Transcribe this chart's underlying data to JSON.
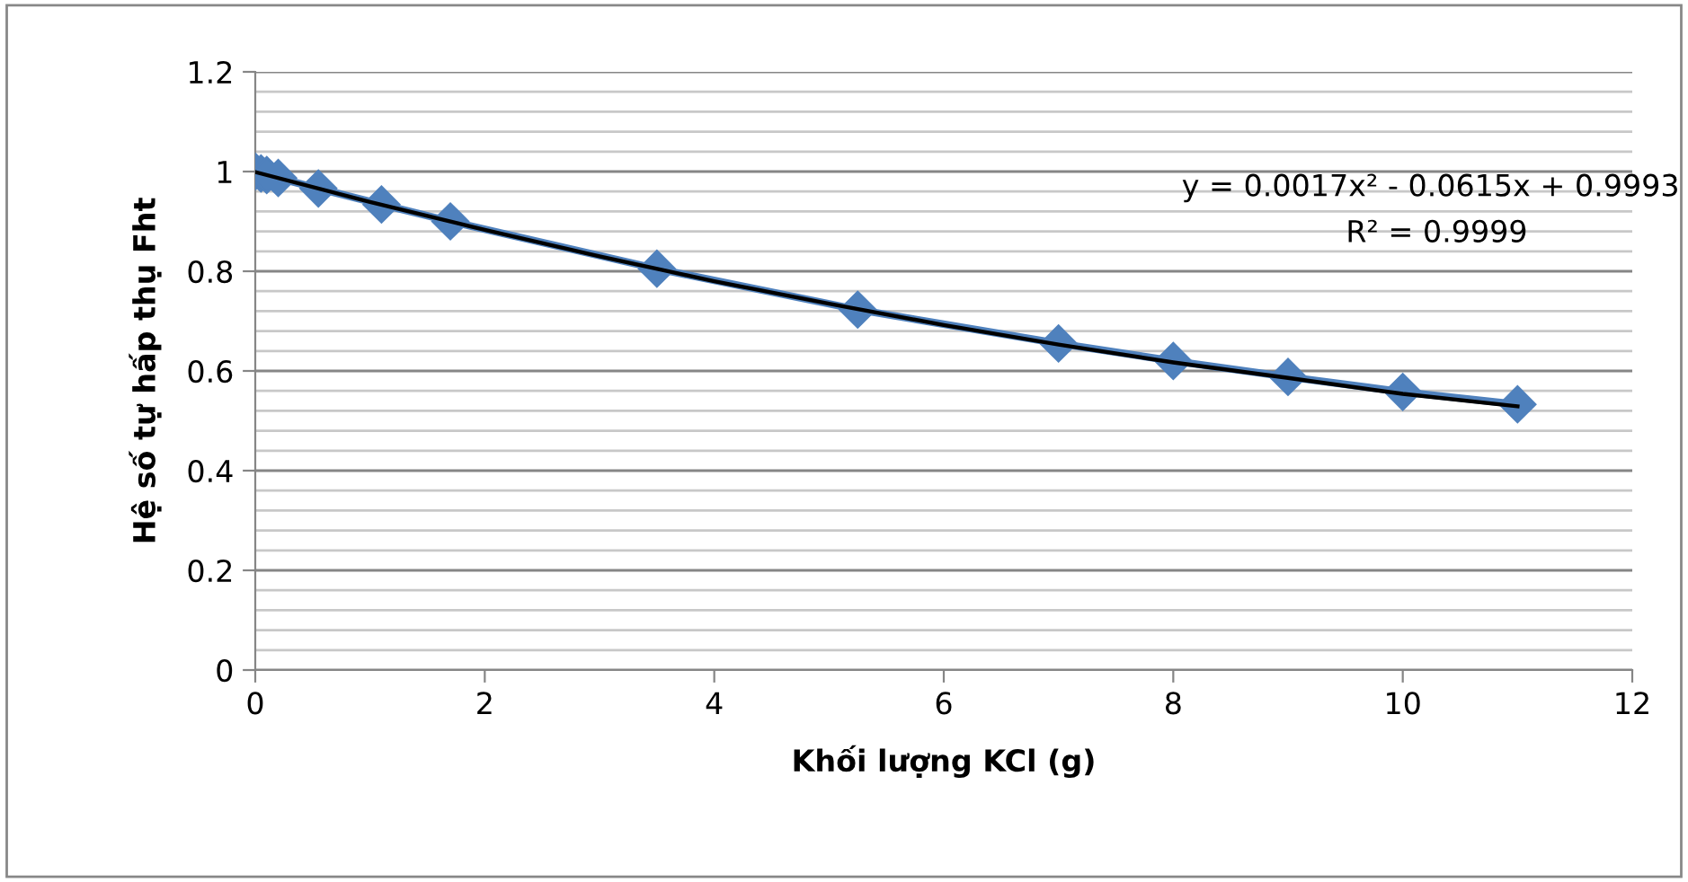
{
  "chart_data": {
    "type": "line",
    "xlabel": "Khối lượng KCl (g)",
    "ylabel": "Hệ số tự hấp thụ Fht",
    "series": [
      {
        "color": "#4f81bd",
        "marker": "diamond",
        "x": [
          0,
          0.05,
          0.1,
          0.2,
          0.55,
          1.1,
          1.7,
          3.5,
          5.25,
          7,
          8,
          9,
          10,
          11
        ],
        "values": [
          1.0,
          0.996,
          0.993,
          0.987,
          0.966,
          0.934,
          0.9,
          0.805,
          0.723,
          0.655,
          0.62,
          0.588,
          0.558,
          0.533
        ]
      },
      {
        "color": "#000000",
        "marker": "none",
        "x": [
          0,
          1,
          2,
          3,
          4,
          5,
          6,
          7,
          8,
          9,
          10,
          11
        ],
        "values": [
          0.999,
          0.939,
          0.883,
          0.83,
          0.78,
          0.735,
          0.692,
          0.653,
          0.617,
          0.586,
          0.554,
          0.529
        ]
      }
    ],
    "xlim": [
      0,
      12
    ],
    "xticks": [
      0,
      2,
      4,
      6,
      8,
      10,
      12
    ],
    "ylim": [
      0,
      1.2
    ],
    "yticks": [
      0,
      {
        "value": 0.04,
        "label": null
      },
      {
        "value": 0.08,
        "label": null
      },
      {
        "value": 0.12,
        "label": null
      },
      {
        "value": 0.16,
        "label": null
      },
      0.2,
      {
        "value": 0.24,
        "label": null
      },
      {
        "value": 0.28,
        "label": null
      },
      {
        "value": 0.32,
        "label": null
      },
      {
        "value": 0.36,
        "label": null
      },
      0.4,
      {
        "value": 0.44,
        "label": null
      },
      {
        "value": 0.48,
        "label": null
      },
      {
        "value": 0.52,
        "label": null
      },
      {
        "value": 0.56,
        "label": null
      },
      0.6,
      {
        "value": 0.64,
        "label": null
      },
      {
        "value": 0.68,
        "label": null
      },
      {
        "value": 0.72,
        "label": null
      },
      {
        "value": 0.76,
        "label": null
      },
      0.8,
      {
        "value": 0.84,
        "label": null
      },
      {
        "value": 0.88,
        "label": null
      },
      {
        "value": 0.92,
        "label": null
      },
      {
        "value": 0.96,
        "label": null
      },
      1,
      {
        "value": 1.04,
        "label": null
      },
      {
        "value": 1.08,
        "label": null
      },
      {
        "value": 1.12,
        "label": null
      },
      {
        "value": 1.16,
        "label": null
      },
      1.2
    ],
    "grid": "y",
    "annotations": [
      "y = 0.0017x² - 0.0615x + 0.9993",
      "R² = 0.9999"
    ]
  }
}
